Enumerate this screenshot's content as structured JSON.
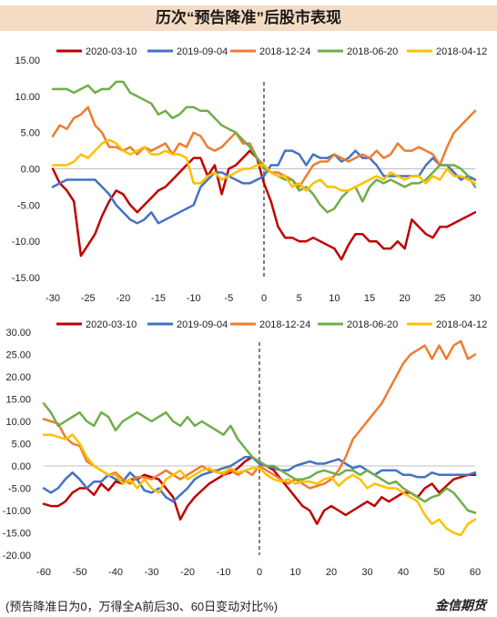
{
  "title": "历次“预告降准”后股市表现",
  "footer": {
    "note": "(预告降准日为0，万得全A前后30、60日变动对比%)",
    "brand": "金信期货"
  },
  "colors": {
    "s2020": "#c00000",
    "s2019": "#4472c4",
    "s2018_12": "#ed7d31",
    "s2018_06": "#70ad47",
    "s2018_04": "#ffc000",
    "title_bg": "#f4dcc4",
    "zero_line": "#555555"
  },
  "chart_data": [
    {
      "type": "line",
      "title": "",
      "xlabel": "",
      "ylabel": "",
      "xlim": [
        -30,
        30
      ],
      "ylim": [
        -15,
        15
      ],
      "x_ticks": [
        -30,
        -25,
        -20,
        -15,
        -10,
        -5,
        0,
        5,
        10,
        15,
        20,
        25,
        30
      ],
      "y_ticks": [
        "15.00",
        "10.00",
        "5.00",
        "0.00",
        "-5.00",
        "-10.00",
        "-15.00"
      ],
      "y_tick_values": [
        15,
        10,
        5,
        0,
        -5,
        -10,
        -15
      ],
      "legend": "top",
      "grid": false,
      "vertical_marker_x": 0,
      "series": [
        {
          "name": "2020-03-10",
          "color_key": "s2020",
          "values": [
            0,
            -2,
            -3,
            -4.5,
            -12,
            -10.5,
            -9,
            -6.5,
            -4.5,
            -3,
            -3.5,
            -5,
            -6,
            -5,
            -4,
            -3,
            -2.5,
            -1.5,
            -0.5,
            0.5,
            1.5,
            1.5,
            -1,
            0.5,
            -3.5,
            0,
            0.5,
            1.5,
            2.5,
            1.5,
            -2,
            -4.5,
            -8,
            -9.5,
            -9.5,
            -10,
            -10,
            -9.5,
            -10,
            -10.5,
            -11,
            -12.5,
            -10.5,
            -9,
            -9,
            -10,
            -10,
            -11,
            -11,
            -10,
            -11,
            -7,
            -8,
            -9,
            -9.5,
            -8,
            -8,
            -7.5,
            -7,
            -6.5,
            -6
          ]
        },
        {
          "name": "2019-09-04",
          "color_key": "s2019",
          "values": [
            -2.5,
            -2,
            -1.5,
            -1.5,
            -1.5,
            -1.5,
            -1.5,
            -2.5,
            -3.5,
            -5,
            -6,
            -7,
            -7.5,
            -7,
            -6,
            -7.5,
            -7,
            -6.5,
            -6,
            -5.5,
            -5,
            -2.5,
            -1.5,
            -0.5,
            -0.5,
            -1,
            -1.5,
            -2,
            -2,
            -1.5,
            -1,
            0.5,
            0.5,
            2.5,
            2.5,
            2,
            0.5,
            2,
            1.5,
            1.5,
            2,
            1,
            1.5,
            2.5,
            1.5,
            1.5,
            0.5,
            -1,
            -1,
            -1,
            -1,
            -1,
            -1,
            0.5,
            1.5,
            0.5,
            0.5,
            -0.5,
            -1.5,
            -1,
            -1.5
          ]
        },
        {
          "name": "2018-12-24",
          "color_key": "s2018_12",
          "values": [
            4.5,
            6,
            5.5,
            7,
            7.5,
            8.5,
            6,
            5,
            3,
            3,
            2.5,
            3,
            2,
            3,
            2.5,
            3,
            3.5,
            2,
            3.5,
            3,
            5,
            4.5,
            3,
            2.5,
            3,
            4,
            5,
            3.5,
            3.5,
            1.5,
            0.5,
            -0.5,
            -0.5,
            -1,
            -1.5,
            -2.5,
            -1,
            0.5,
            1,
            1,
            2,
            1.5,
            1,
            1.5,
            2,
            1.5,
            2.5,
            1.5,
            2,
            3.5,
            2.5,
            2.5,
            3,
            2.5,
            2,
            0.5,
            3,
            5,
            6,
            7,
            8
          ]
        },
        {
          "name": "2018-06-20",
          "color_key": "s2018_06",
          "values": [
            11,
            11,
            11,
            10.5,
            11,
            11.5,
            10.5,
            11,
            11,
            12,
            12,
            10.5,
            10,
            9.5,
            9,
            7.5,
            8,
            7,
            7.5,
            8.5,
            8.5,
            8,
            8,
            7,
            6,
            5.5,
            5,
            4,
            3,
            1.5,
            0,
            -0.5,
            -1,
            -1.5,
            -1.5,
            -3,
            -2.5,
            -3.5,
            -5,
            -6,
            -5.5,
            -4,
            -3,
            -2.5,
            -4.5,
            -2.5,
            -1.5,
            -2,
            -1.5,
            -2,
            -2.5,
            -2,
            -2,
            -1.5,
            -0.5,
            0.5,
            0.5,
            0.5,
            0,
            -1,
            -2.5
          ]
        },
        {
          "name": "2018-04-12",
          "color_key": "s2018_04",
          "values": [
            0.5,
            0.5,
            0.5,
            1,
            2,
            1.5,
            2.5,
            3.5,
            4,
            3.5,
            2.5,
            2,
            2.5,
            3,
            2,
            2,
            2.5,
            2,
            2,
            1.5,
            -2,
            -2,
            -1,
            -0.5,
            -1.5,
            -1,
            -0.5,
            0,
            0,
            0.5,
            0.5,
            -0.5,
            -1,
            -1,
            -2.5,
            -2,
            -3,
            -2,
            -1.5,
            -2.5,
            -2.5,
            -3,
            -3,
            -2.5,
            -2,
            -1.5,
            -1,
            -1.5,
            -0.5,
            -1,
            -1.5,
            -1,
            -1,
            -2,
            -1,
            -1.5,
            0,
            -1,
            -1,
            -1.5,
            -2
          ]
        }
      ]
    },
    {
      "type": "line",
      "title": "",
      "xlabel": "",
      "ylabel": "",
      "xlim": [
        -60,
        60
      ],
      "ylim": [
        -20,
        30
      ],
      "x_ticks": [
        -60,
        -50,
        -40,
        -30,
        -20,
        -10,
        0,
        10,
        20,
        30,
        40,
        50,
        60
      ],
      "y_ticks": [
        "30.00",
        "25.00",
        "20.00",
        "15.00",
        "10.00",
        "5.00",
        "0.00",
        "-5.00",
        "-10.00",
        "-15.00",
        "-20.00"
      ],
      "y_tick_values": [
        30,
        25,
        20,
        15,
        10,
        5,
        0,
        -5,
        -10,
        -15,
        -20
      ],
      "legend": "top",
      "grid": false,
      "vertical_marker_x": 0,
      "series": [
        {
          "name": "2020-03-10",
          "color_key": "s2020",
          "values": [
            -8.5,
            -9,
            -9,
            -8,
            -6,
            -5,
            -5,
            -6.5,
            -4,
            -5.5,
            -3.5,
            -4,
            -3,
            -3,
            -2,
            -2.5,
            -3,
            -5,
            -7,
            -12,
            -9,
            -7,
            -5.5,
            -4,
            -3,
            -2,
            -1.5,
            -0.5,
            1,
            2,
            0.5,
            0,
            -1,
            -3,
            -5,
            -7,
            -9,
            -10,
            -13,
            -10,
            -9,
            -10,
            -11,
            -10,
            -9,
            -8,
            -9,
            -7,
            -8,
            -7,
            -6,
            -6,
            -7,
            -5,
            -4,
            -6,
            -4.5,
            -3,
            -2.5,
            -2,
            -2
          ]
        },
        {
          "name": "2019-09-04",
          "color_key": "s2019",
          "values": [
            -5,
            -6,
            -5,
            -3,
            -1.5,
            -3,
            -5,
            -3.5,
            -3.5,
            -2,
            -3,
            -3.5,
            -1.5,
            -3,
            -5.5,
            -6,
            -5,
            -7,
            -8,
            -6.5,
            -5,
            -3,
            -2,
            -1.5,
            -1,
            -0.5,
            0,
            1,
            2,
            2,
            0.5,
            0,
            -0.5,
            -1,
            -1,
            0,
            0.5,
            1,
            0.5,
            0.5,
            1,
            1.5,
            0.5,
            -0.5,
            0,
            -1,
            -2,
            -1,
            -1,
            -1,
            -2,
            -2,
            -2.5,
            -2.5,
            -1.5,
            -2,
            -2,
            -2,
            -2,
            -2,
            -1.5
          ]
        },
        {
          "name": "2018-12-24",
          "color_key": "s2018_12",
          "values": [
            10.5,
            10,
            9.5,
            6.5,
            5,
            4.5,
            1,
            0,
            -1,
            -2,
            -1.5,
            -3,
            -4,
            -2.5,
            -2.5,
            -3,
            -2,
            -1,
            -2,
            -3,
            -2,
            -1,
            0,
            -1,
            -1,
            -2,
            -1,
            -2,
            -1,
            -2,
            0,
            -1,
            -2,
            -3,
            -4,
            -3,
            -4,
            -5,
            -4.5,
            -4,
            -3,
            -1,
            2,
            6,
            8,
            10,
            12,
            14,
            17,
            20,
            23,
            25,
            26,
            27,
            24,
            27,
            24,
            27,
            28,
            24,
            25
          ]
        },
        {
          "name": "2018-06-20",
          "color_key": "s2018_06",
          "values": [
            14,
            12,
            9,
            10,
            11,
            12,
            10,
            9,
            12,
            11,
            8,
            10,
            11,
            12,
            11,
            10,
            11,
            12,
            10,
            9,
            11,
            9,
            10,
            9,
            8,
            7,
            9,
            6,
            4,
            2,
            1,
            0,
            0,
            -1,
            -2,
            -3,
            -3,
            -2.5,
            -1.5,
            -1,
            -1.5,
            -2,
            -1,
            -1,
            -2,
            -1,
            -2,
            -3,
            -4,
            -3.5,
            -5,
            -6,
            -7,
            -8,
            -7,
            -6.5,
            -5,
            -6,
            -8,
            -10,
            -10.5
          ]
        },
        {
          "name": "2018-04-12",
          "color_key": "s2018_04",
          "values": [
            7,
            7,
            6.5,
            6,
            7,
            5,
            2,
            0,
            -1,
            -2,
            -2,
            -4,
            -3,
            -5,
            -3,
            -5,
            -6,
            -3,
            -2,
            -1,
            -3,
            -2,
            -1,
            -0.5,
            -1.5,
            -1.5,
            -0.5,
            -1.5,
            -1,
            -0.5,
            -0.5,
            -2,
            -3,
            -3.5,
            -3,
            -4,
            -3.5,
            -3.5,
            -4,
            -3,
            -2.5,
            -4.5,
            -3,
            -2,
            -3,
            -5,
            -4,
            -4.5,
            -5,
            -5,
            -6,
            -7,
            -8,
            -11,
            -13,
            -12,
            -14,
            -15,
            -15.5,
            -13,
            -12
          ]
        }
      ]
    }
  ]
}
